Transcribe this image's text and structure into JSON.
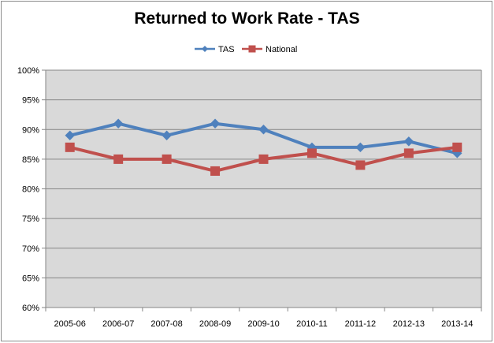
{
  "chart_data": {
    "type": "line",
    "title": "Returned to Work Rate - TAS",
    "categories": [
      "2005-06",
      "2006-07",
      "2007-08",
      "2008-09",
      "2009-10",
      "2010-11",
      "2011-12",
      "2012-13",
      "2013-14"
    ],
    "y_ticks": [
      "60%",
      "65%",
      "70%",
      "75%",
      "80%",
      "85%",
      "90%",
      "95%",
      "100%"
    ],
    "ylim": [
      60,
      100
    ],
    "y_step": 5,
    "grid": "horizontal",
    "legend_position": "top",
    "plot_background": "#d9d9d9",
    "series": [
      {
        "name": "TAS",
        "values": [
          89,
          91,
          89,
          91,
          90,
          87,
          87,
          88,
          86
        ],
        "color": "#4f81bd",
        "marker": "diamond"
      },
      {
        "name": "National",
        "values": [
          87,
          85,
          85,
          83,
          85,
          86,
          84,
          86,
          87
        ],
        "color": "#c0504d",
        "marker": "square"
      }
    ]
  }
}
